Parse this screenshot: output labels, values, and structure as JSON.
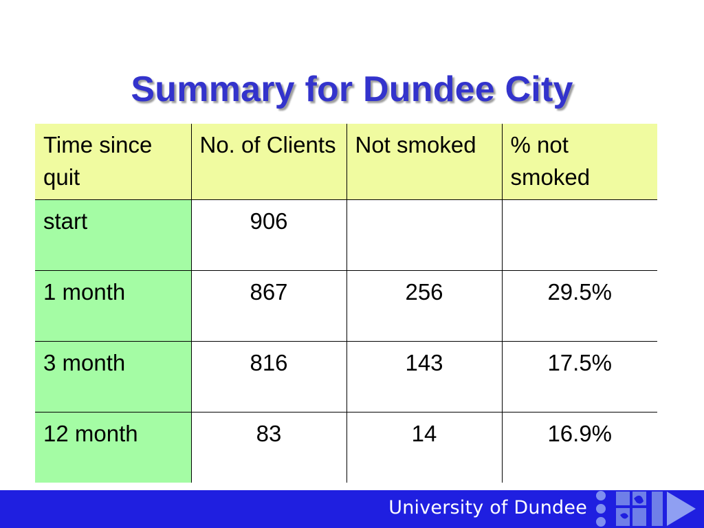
{
  "slide": {
    "title": "Summary for Dundee City"
  },
  "table": {
    "headers": [
      "Time since quit",
      "No. of Clients",
      "Not smoked",
      "% not smoked"
    ],
    "rows": [
      [
        "start",
        "906",
        "",
        ""
      ],
      [
        "1 month",
        "867",
        "256",
        "29.5%"
      ],
      [
        "3 month",
        "816",
        "143",
        "17.5%"
      ],
      [
        "12 month",
        "83",
        "14",
        "16.9%"
      ]
    ]
  },
  "footer": {
    "text": "University of Dundee"
  },
  "colors": {
    "title": "#3333cc",
    "header_fill": "#f0fba0",
    "row_label_fill": "#a4fca4",
    "footer_band": "#1f1fe0"
  },
  "icons": {
    "logo": "university-of-dundee-logo"
  }
}
